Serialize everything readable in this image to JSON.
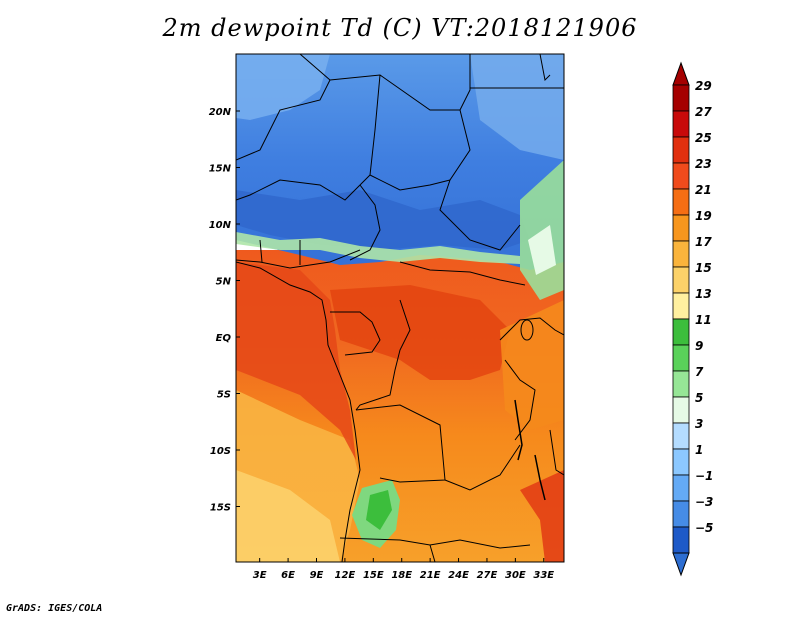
{
  "title": "2m dewpoint Td (C) VT:2018121906",
  "credit": "GrADS: IGES/COLA",
  "map": {
    "lat_ticks": [
      {
        "value": 20,
        "label": "20N"
      },
      {
        "value": 15,
        "label": "15N"
      },
      {
        "value": 10,
        "label": "10N"
      },
      {
        "value": 5,
        "label": "5N"
      },
      {
        "value": 0,
        "label": "EQ"
      },
      {
        "value": -5,
        "label": "5S"
      },
      {
        "value": -10,
        "label": "10S"
      },
      {
        "value": -15,
        "label": "15S"
      }
    ],
    "lon_ticks": [
      {
        "value": 3,
        "label": "3E"
      },
      {
        "value": 6,
        "label": "6E"
      },
      {
        "value": 9,
        "label": "9E"
      },
      {
        "value": 12,
        "label": "12E"
      },
      {
        "value": 15,
        "label": "15E"
      },
      {
        "value": 18,
        "label": "18E"
      },
      {
        "value": 21,
        "label": "21E"
      },
      {
        "value": 24,
        "label": "24E"
      },
      {
        "value": 27,
        "label": "27E"
      },
      {
        "value": 30,
        "label": "30E"
      },
      {
        "value": 33,
        "label": "33E"
      }
    ]
  },
  "colorbar": {
    "levels": [
      {
        "label": "29",
        "color": "#a50000"
      },
      {
        "label": "27",
        "color": "#c80a0a"
      },
      {
        "label": "25",
        "color": "#e1300f"
      },
      {
        "label": "23",
        "color": "#f04b1c"
      },
      {
        "label": "21",
        "color": "#f56e14"
      },
      {
        "label": "19",
        "color": "#f7961e"
      },
      {
        "label": "17",
        "color": "#fab43c"
      },
      {
        "label": "15",
        "color": "#fcd269"
      },
      {
        "label": "13",
        "color": "#fff0a0"
      },
      {
        "label": "11",
        "color": "#3cbe3c"
      },
      {
        "label": "9",
        "color": "#5ad25a"
      },
      {
        "label": "7",
        "color": "#96e696"
      },
      {
        "label": "5",
        "color": "#e6fae6"
      },
      {
        "label": "3",
        "color": "#b4dcff"
      },
      {
        "label": "1",
        "color": "#8cc8ff"
      },
      {
        "label": "−1",
        "color": "#64aaf5"
      },
      {
        "label": "−3",
        "color": "#468ce6"
      },
      {
        "label": "−5",
        "color": "#2d6ed2"
      }
    ],
    "above_color": "#a50000",
    "below_color": "#2d6ed2",
    "extra_bin_color": "#1e5ac8"
  }
}
